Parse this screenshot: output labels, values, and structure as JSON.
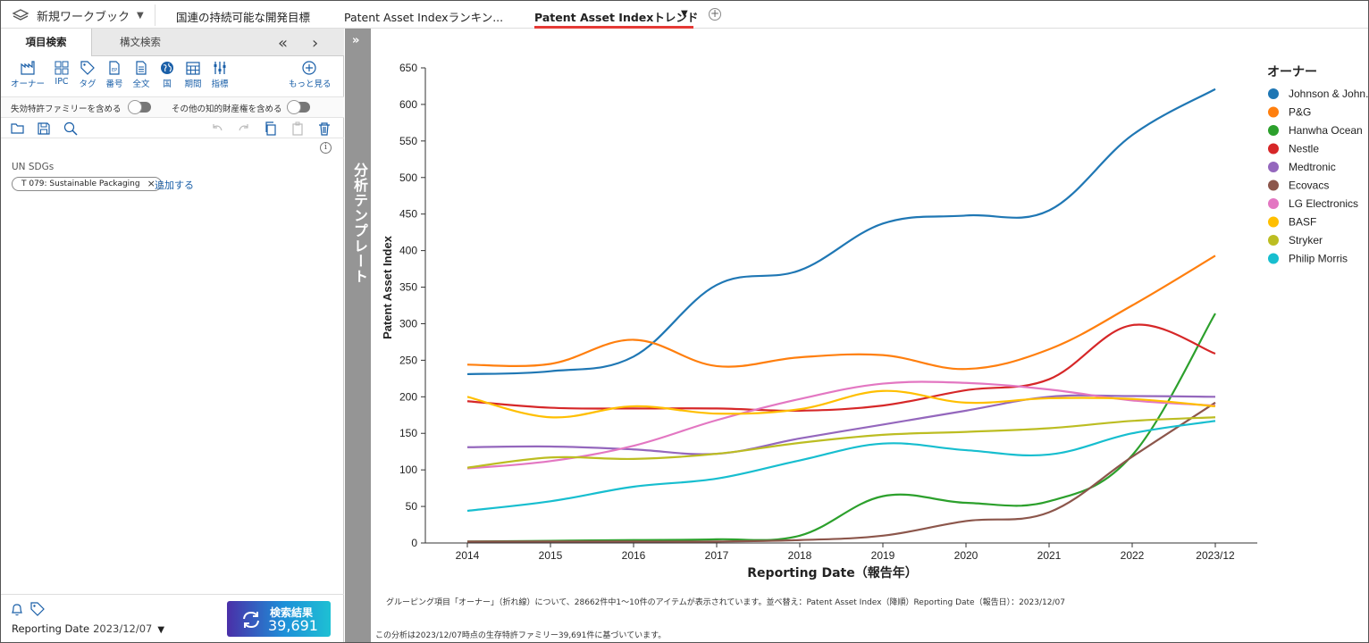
{
  "topbar": {
    "workbook_label": "新規ワークブック",
    "tabs": [
      {
        "label": "国連の持続可能な開発目標"
      },
      {
        "label": "Patent Asset Indexランキン..."
      },
      {
        "label": "Patent Asset Indexトレンド"
      }
    ],
    "add_tab": "+"
  },
  "left": {
    "tabs": [
      "項目検索",
      "構文検索"
    ],
    "tools": [
      "オーナー",
      "IPC",
      "タグ",
      "番号",
      "全文",
      "国",
      "期間",
      "指標",
      "もっと見る"
    ],
    "toggle1": "失効特許ファミリーを含める",
    "toggle2": "その他の知的財産権を含める",
    "sdg_label": "UN SDGs",
    "chip_label": "T 079: Sustainable Packaging",
    "chip_close": "×",
    "add_link": "追加する",
    "info": "i",
    "reporting_label": "Reporting Date",
    "reporting_value": "2023/12/07",
    "search_btn_label": "検索結果",
    "search_btn_count": "39,691"
  },
  "strip": {
    "expand": "»",
    "title": "分析テンプレート"
  },
  "footer": {
    "note1": "グルーピング項目「オーナー」（折れ線）について、28662件中1〜10件のアイテムが表示されています。並べ替え：Patent Asset Index（降順）Reporting Date（報告日）：2023/12/07",
    "note2": "この分析は2023/12/07時点の生存特許ファミリー39,691件に基づいています。"
  },
  "chart_data": {
    "type": "line",
    "xlabel": "Reporting Date（報告年）",
    "ylabel": "Patent Asset Index",
    "ylim": [
      0,
      650
    ],
    "yticks": [
      0,
      50,
      100,
      150,
      200,
      250,
      300,
      350,
      400,
      450,
      500,
      550,
      600,
      650
    ],
    "categories": [
      "2014",
      "2015",
      "2016",
      "2017",
      "2018",
      "2019",
      "2020",
      "2021",
      "2022",
      "2023/12"
    ],
    "legend_title": "オーナー",
    "legend_position": "right",
    "grid": false,
    "series": [
      {
        "name": "Johnson & John...",
        "color": "#1f77b4",
        "values": [
          231,
          235,
          255,
          353,
          373,
          437,
          448,
          455,
          558,
          621
        ]
      },
      {
        "name": "P&G",
        "color": "#ff7f0e",
        "values": [
          244,
          245,
          278,
          242,
          254,
          257,
          238,
          265,
          325,
          393
        ]
      },
      {
        "name": "Hanwha Ocean",
        "color": "#2ca02c",
        "values": [
          2,
          3,
          4,
          5,
          10,
          64,
          55,
          57,
          120,
          314
        ]
      },
      {
        "name": "Nestle",
        "color": "#d62728",
        "values": [
          194,
          185,
          184,
          184,
          181,
          188,
          209,
          224,
          298,
          259
        ]
      },
      {
        "name": "Medtronic",
        "color": "#9467bd",
        "values": [
          131,
          132,
          128,
          122,
          143,
          162,
          181,
          200,
          201,
          200
        ]
      },
      {
        "name": "Ecovacs",
        "color": "#8c564b",
        "values": [
          2,
          2,
          2,
          2,
          4,
          10,
          30,
          42,
          118,
          192
        ]
      },
      {
        "name": "LG Electronics",
        "color": "#e377c2",
        "values": [
          102,
          112,
          133,
          168,
          197,
          218,
          219,
          210,
          195,
          188
        ]
      },
      {
        "name": "BASF",
        "color": "#ffbf00",
        "values": [
          200,
          172,
          187,
          177,
          183,
          208,
          192,
          198,
          197,
          187
        ]
      },
      {
        "name": "Stryker",
        "color": "#bcbd22",
        "values": [
          103,
          117,
          115,
          122,
          137,
          148,
          152,
          157,
          167,
          172
        ]
      },
      {
        "name": "Philip Morris",
        "color": "#17becf",
        "values": [
          44,
          57,
          77,
          88,
          113,
          136,
          127,
          121,
          150,
          167
        ]
      }
    ]
  }
}
